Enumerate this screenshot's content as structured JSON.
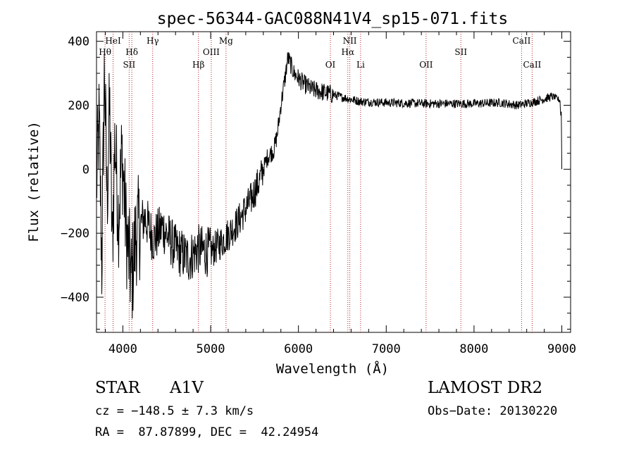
{
  "chart_data": {
    "type": "line",
    "title": "spec-56344-GAC088N41V4_sp15-071.fits",
    "xlabel": "Wavelength (Å)",
    "ylabel": "Flux (relative)",
    "xlim": [
      3700,
      9100
    ],
    "ylim": [
      -510,
      430
    ],
    "x_ticks": [
      4000,
      5000,
      6000,
      7000,
      8000,
      9000
    ],
    "y_ticks": [
      -400,
      -200,
      0,
      200,
      400
    ],
    "grid": false,
    "line_color": "#000000",
    "marker_color": "#b22222",
    "spectrum_anchors": [
      [
        3700,
        -50
      ],
      [
        3730,
        150
      ],
      [
        3760,
        -300
      ],
      [
        3790,
        320
      ],
      [
        3820,
        -100
      ],
      [
        3850,
        200
      ],
      [
        3880,
        -250
      ],
      [
        3910,
        100
      ],
      [
        3950,
        -150
      ],
      [
        3990,
        50
      ],
      [
        4040,
        -200
      ],
      [
        4100,
        -350
      ],
      [
        4150,
        -200
      ],
      [
        4250,
        -150
      ],
      [
        4350,
        -220
      ],
      [
        4450,
        -180
      ],
      [
        4600,
        -250
      ],
      [
        4750,
        -280
      ],
      [
        4850,
        -250
      ],
      [
        5000,
        -260
      ],
      [
        5150,
        -220
      ],
      [
        5300,
        -170
      ],
      [
        5450,
        -100
      ],
      [
        5550,
        -40
      ],
      [
        5650,
        40
      ],
      [
        5720,
        60
      ],
      [
        5760,
        110
      ],
      [
        5800,
        200
      ],
      [
        5850,
        290
      ],
      [
        5880,
        350
      ],
      [
        5950,
        300
      ],
      [
        6050,
        270
      ],
      [
        6150,
        250
      ],
      [
        6300,
        240
      ],
      [
        6500,
        225
      ],
      [
        6700,
        212
      ],
      [
        7000,
        208
      ],
      [
        7500,
        205
      ],
      [
        8000,
        205
      ],
      [
        8300,
        208
      ],
      [
        8500,
        200
      ],
      [
        8700,
        212
      ],
      [
        8900,
        228
      ],
      [
        8980,
        215
      ],
      [
        8995,
        120
      ],
      [
        9000,
        0
      ]
    ],
    "lines": [
      {
        "label": "Hθ",
        "wl": 3797,
        "row": 1
      },
      {
        "label": "HeI",
        "wl": 3889,
        "row": 0
      },
      {
        "label": "Hδ",
        "wl": 4102,
        "row": 1
      },
      {
        "label": "SII",
        "wl": 4072,
        "row": 2
      },
      {
        "label": "Hγ",
        "wl": 4340,
        "row": 0
      },
      {
        "label": "Hβ",
        "wl": 4861,
        "row": 2
      },
      {
        "label": "OIII",
        "wl": 5007,
        "row": 1
      },
      {
        "label": "Mg",
        "wl": 5175,
        "row": 0
      },
      {
        "label": "OI",
        "wl": 6364,
        "row": 2
      },
      {
        "label": "NII",
        "wl": 6585,
        "row": 0
      },
      {
        "label": "Hα",
        "wl": 6563,
        "row": 1
      },
      {
        "label": "Li",
        "wl": 6708,
        "row": 2
      },
      {
        "label": "OII",
        "wl": 7454,
        "row": 2
      },
      {
        "label": "SII",
        "wl": 7850,
        "row": 1
      },
      {
        "label": "CaII",
        "wl": 8542,
        "row": 0
      },
      {
        "label": "CaII",
        "wl": 8662,
        "row": 2
      }
    ]
  },
  "info": {
    "class_label": "STAR",
    "subclass": "A1V",
    "survey": "LAMOST DR2",
    "cz": "cz = −148.5 ± 7.3 km/s",
    "obs_date": "Obs−Date: 20130220",
    "radec": "RA =  87.87899, DEC =  42.24954"
  }
}
